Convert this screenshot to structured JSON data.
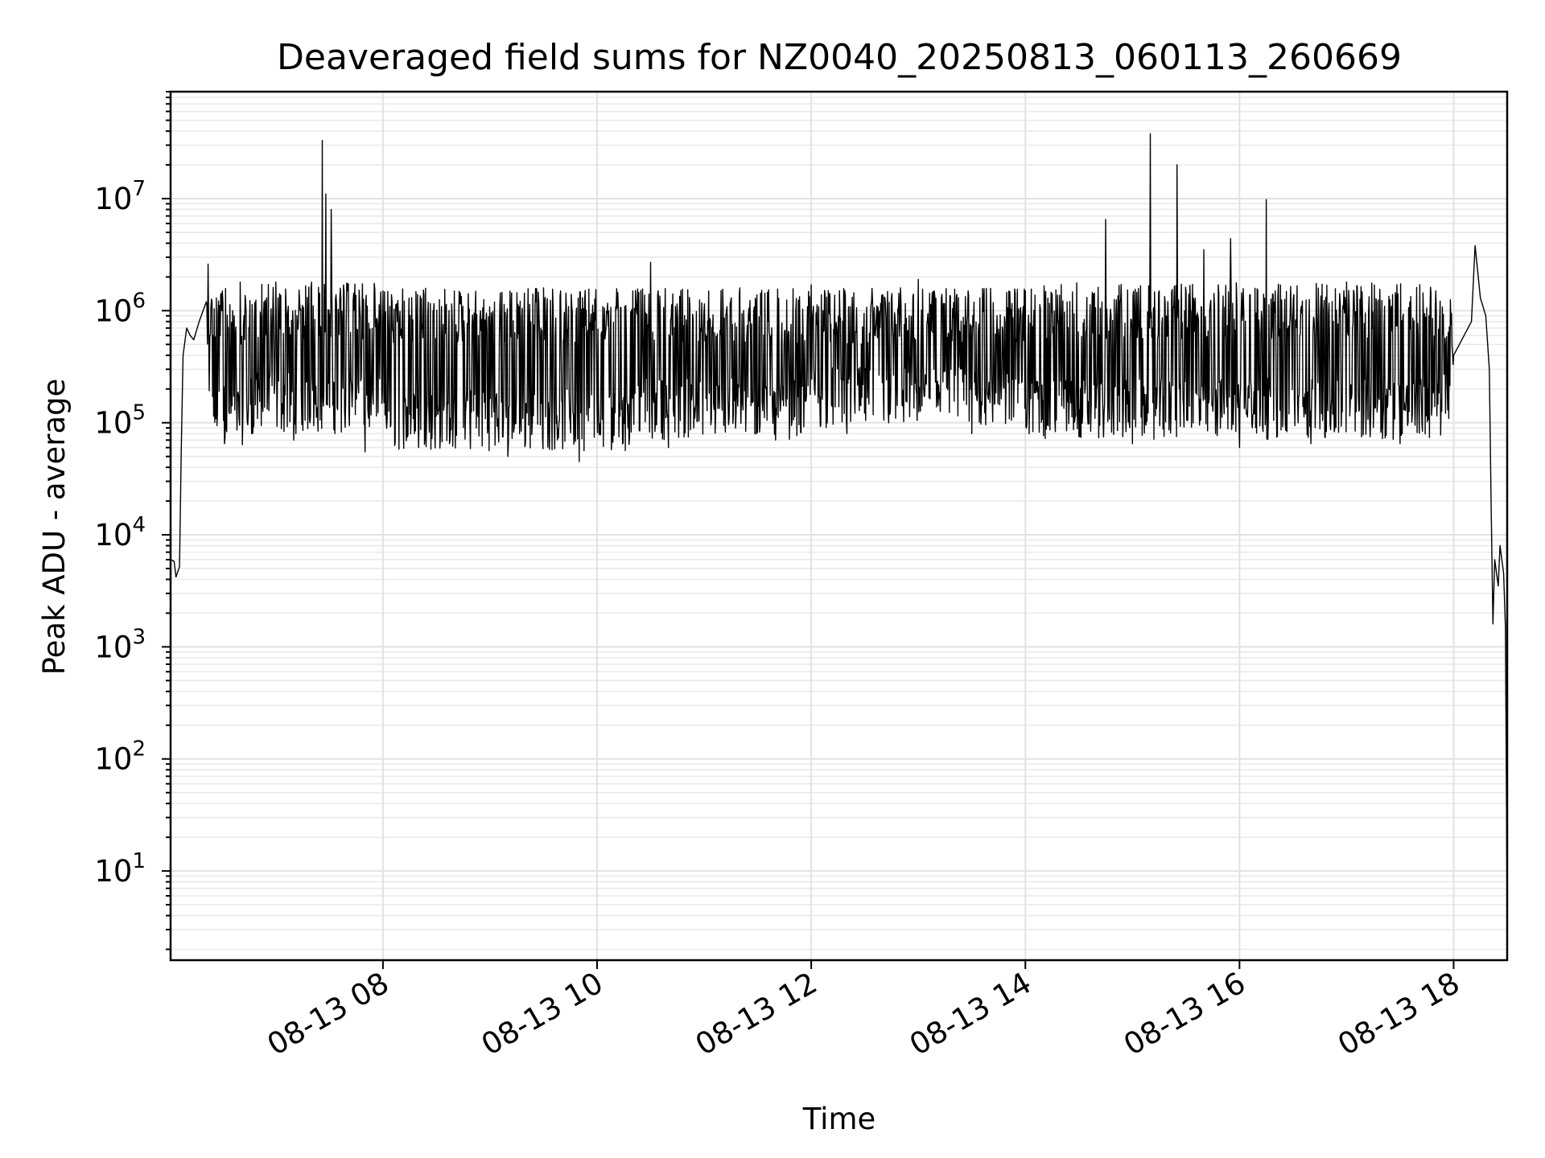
{
  "chart_data": {
    "type": "line",
    "title": "Deaveraged field sums for NZ0040_20250813_060113_260669",
    "xlabel": "Time",
    "ylabel": "Peak ADU - average",
    "yscale": "log",
    "xlim": [
      "2025-08-13 06:01",
      "2025-08-13 18:30"
    ],
    "ylim": [
      1.6,
      90000000
    ],
    "grid": "on",
    "x_ticks": [
      {
        "label": "08-13 08",
        "value": "2025-08-13 08:00"
      },
      {
        "label": "08-13 10",
        "value": "2025-08-13 10:00"
      },
      {
        "label": "08-13 12",
        "value": "2025-08-13 12:00"
      },
      {
        "label": "08-13 14",
        "value": "2025-08-13 14:00"
      },
      {
        "label": "08-13 16",
        "value": "2025-08-13 16:00"
      },
      {
        "label": "08-13 18",
        "value": "2025-08-13 18:00"
      }
    ],
    "y_ticks": [
      {
        "base": "10",
        "exp": "1",
        "value": 10
      },
      {
        "base": "10",
        "exp": "2",
        "value": 100
      },
      {
        "base": "10",
        "exp": "3",
        "value": 1000
      },
      {
        "base": "10",
        "exp": "4",
        "value": 10000
      },
      {
        "base": "10",
        "exp": "5",
        "value": 100000
      },
      {
        "base": "10",
        "exp": "6",
        "value": 1000000
      },
      {
        "base": "10",
        "exp": "7",
        "value": 10000000
      }
    ],
    "series": [
      {
        "color": "#000000",
        "points": [
          [
            "2025-08-13 06:01",
            6000
          ],
          [
            "2025-08-13 06:03",
            5800
          ],
          [
            "2025-08-13 06:04",
            4200
          ],
          [
            "2025-08-13 06:06",
            5200
          ],
          [
            "2025-08-13 06:07",
            60000
          ],
          [
            "2025-08-13 06:08",
            400000
          ],
          [
            "2025-08-13 06:10",
            700000
          ],
          [
            "2025-08-13 06:12",
            600000
          ],
          [
            "2025-08-13 06:14",
            550000
          ],
          [
            "2025-08-13 06:17",
            800000
          ],
          [
            "2025-08-13 06:21",
            1200000
          ],
          [
            "2025-08-13 06:22",
            2600000
          ],
          [
            "2025-08-13 06:23",
            600000
          ],
          [
            "2025-08-13 06:30",
            1500000
          ],
          [
            "2025-08-13 06:40",
            1800000
          ],
          [
            "2025-08-13 06:47",
            80000
          ],
          [
            "2025-08-13 07:00",
            1800000
          ],
          [
            "2025-08-13 07:10",
            70000
          ],
          [
            "2025-08-13 07:20",
            1800000
          ],
          [
            "2025-08-13 07:26",
            33000000
          ],
          [
            "2025-08-13 07:28",
            11000000
          ],
          [
            "2025-08-13 07:31",
            8000000
          ],
          [
            "2025-08-13 07:40",
            1500000
          ],
          [
            "2025-08-13 07:50",
            55000
          ],
          [
            "2025-08-13 08:00",
            1500000
          ],
          [
            "2025-08-13 08:20",
            60000
          ],
          [
            "2025-08-13 08:40",
            1500000
          ],
          [
            "2025-08-13 09:10",
            50000
          ],
          [
            "2025-08-13 09:30",
            1600000
          ],
          [
            "2025-08-13 09:50",
            45000
          ],
          [
            "2025-08-13 10:20",
            1500000
          ],
          [
            "2025-08-13 10:30",
            2700000
          ],
          [
            "2025-08-13 10:40",
            60000
          ],
          [
            "2025-08-13 11:20",
            1600000
          ],
          [
            "2025-08-13 11:40",
            70000
          ],
          [
            "2025-08-13 12:00",
            1700000
          ],
          [
            "2025-08-13 12:20",
            80000
          ],
          [
            "2025-08-13 12:50",
            1600000
          ],
          [
            "2025-08-13 13:00",
            1900000
          ],
          [
            "2025-08-13 13:30",
            80000
          ],
          [
            "2025-08-13 14:00",
            1500000
          ],
          [
            "2025-08-13 14:30",
            75000
          ],
          [
            "2025-08-13 14:45",
            6500000
          ],
          [
            "2025-08-13 15:00",
            65000
          ],
          [
            "2025-08-13 15:10",
            38000000
          ],
          [
            "2025-08-13 15:15",
            1500000
          ],
          [
            "2025-08-13 15:25",
            20000000
          ],
          [
            "2025-08-13 15:40",
            3500000
          ],
          [
            "2025-08-13 15:55",
            4400000
          ],
          [
            "2025-08-13 16:00",
            60000
          ],
          [
            "2025-08-13 16:15",
            9800000
          ],
          [
            "2025-08-13 16:20",
            1500000
          ],
          [
            "2025-08-13 16:40",
            65000
          ],
          [
            "2025-08-13 17:00",
            1800000
          ],
          [
            "2025-08-13 17:30",
            65000
          ],
          [
            "2025-08-13 17:50",
            1500000
          ],
          [
            "2025-08-13 18:00",
            400000
          ],
          [
            "2025-08-13 18:10",
            800000
          ],
          [
            "2025-08-13 18:12",
            3800000
          ],
          [
            "2025-08-13 18:15",
            1300000
          ],
          [
            "2025-08-13 18:18",
            900000
          ],
          [
            "2025-08-13 18:20",
            300000
          ],
          [
            "2025-08-13 18:21",
            20000
          ],
          [
            "2025-08-13 18:22",
            1600
          ],
          [
            "2025-08-13 18:23",
            6000
          ],
          [
            "2025-08-13 18:25",
            3500
          ],
          [
            "2025-08-13 18:26",
            8000
          ],
          [
            "2025-08-13 18:28",
            4500
          ],
          [
            "2025-08-13 18:29",
            1500
          ],
          [
            "2025-08-13 18:30",
            4
          ]
        ]
      }
    ]
  }
}
